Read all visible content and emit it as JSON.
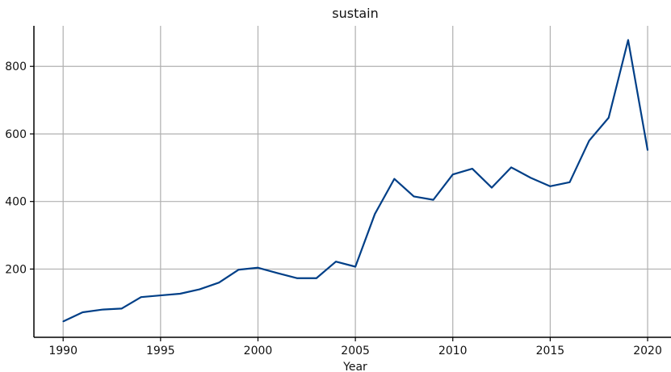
{
  "chart_data": {
    "type": "line",
    "title": "sustain",
    "xlabel": "Year",
    "ylabel": "",
    "xlim": [
      1988.5,
      2021.2
    ],
    "ylim": [
      -2,
      920
    ],
    "xticks": [
      1990,
      1995,
      2000,
      2005,
      2010,
      2015,
      2020
    ],
    "yticks": [
      200,
      400,
      600,
      800
    ],
    "grid": true,
    "legend": "none",
    "line_color": "#003f87",
    "series": [
      {
        "x": [
          1990,
          1991,
          1992,
          1993,
          1994,
          1995,
          1996,
          1997,
          1998,
          1999,
          2000,
          2001,
          2002,
          2003,
          2004,
          2005,
          2006,
          2007,
          2008,
          2009,
          2010,
          2011,
          2012,
          2013,
          2014,
          2015,
          2016,
          2017,
          2018,
          2019,
          2020
        ],
        "values": [
          45,
          72,
          80,
          83,
          117,
          122,
          127,
          140,
          160,
          198,
          204,
          188,
          173,
          173,
          222,
          207,
          363,
          467,
          415,
          405,
          480,
          497,
          441,
          501,
          470,
          445,
          457,
          580,
          648,
          878,
          552
        ]
      }
    ]
  }
}
